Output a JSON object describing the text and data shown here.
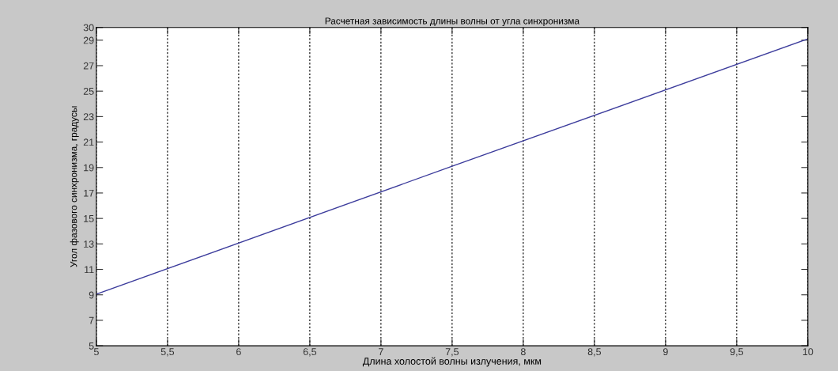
{
  "chart_data": {
    "type": "line",
    "title": "Расчетная зависимость длины волны от угла синхронизма",
    "xlabel": "Длина холостой волны излучения, мкм",
    "ylabel": "Угол фазового синхронизма, градусы",
    "x": [
      5,
      7.5,
      10
    ],
    "series": [
      {
        "color": "#3c3c9c",
        "values": [
          9.05,
          19.1,
          29.1
        ]
      }
    ],
    "xlim": [
      5,
      10
    ],
    "xticks": [
      5,
      {
        "value": 5.5,
        "label": "5,5"
      },
      6,
      {
        "value": 6.5,
        "label": "6,5"
      },
      7,
      {
        "value": 7.5,
        "label": "7,5"
      },
      8,
      {
        "value": 8.5,
        "label": "8,5"
      },
      9,
      {
        "value": 9.5,
        "label": "9,5"
      },
      10
    ],
    "ylim": [
      5,
      30
    ],
    "yticks": [
      5,
      7,
      9,
      11,
      13,
      15,
      17,
      19,
      21,
      23,
      25,
      27,
      29,
      30
    ],
    "grid": "x",
    "line_style": "solid",
    "marker": "none"
  }
}
